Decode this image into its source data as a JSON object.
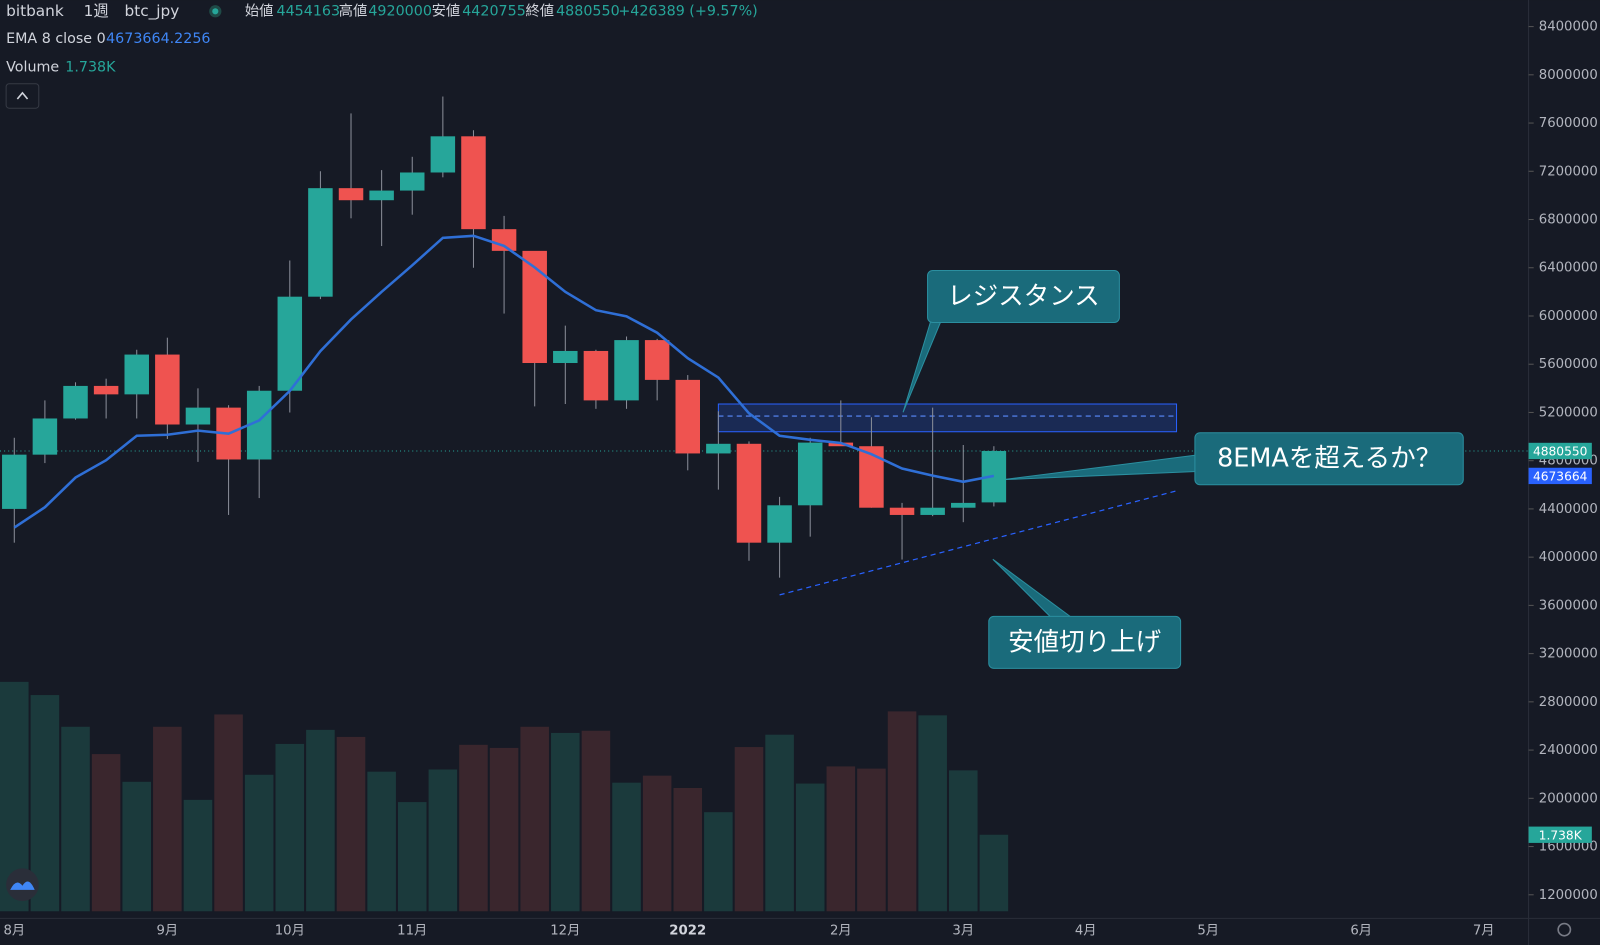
{
  "chart_data": {
    "type": "candlestick",
    "symbol": "bitbank",
    "interval": "1週",
    "pair": "btc_jpy",
    "header_labels": {
      "open": "始値",
      "high": "高値",
      "low": "安値",
      "close": "終値"
    },
    "change": "+426389 (+9.57%)",
    "candles": {
      "open": [
        4400000,
        4850000,
        5150000,
        5420000,
        5350000,
        5680000,
        5100000,
        5240000,
        4810000,
        5380000,
        6160000,
        7060000,
        6960000,
        7040000,
        7190000,
        7490000,
        6720000,
        6540000,
        5610000,
        5710000,
        5300000,
        5800000,
        5470000,
        4860000,
        4940000,
        4120000,
        4430000,
        4950000,
        4920000,
        4410000,
        4350000,
        4410000,
        4454163
      ],
      "high": [
        4990000,
        5300000,
        5450000,
        5480000,
        5720000,
        5820000,
        5400000,
        5260000,
        5420000,
        6460000,
        7200000,
        7680000,
        7210000,
        7320000,
        7820000,
        7540000,
        6830000,
        6530000,
        5920000,
        5720000,
        5830000,
        5810000,
        5510000,
        5210000,
        4960000,
        4500000,
        4990000,
        5300000,
        5160000,
        4450000,
        5240000,
        4930000,
        4920000
      ],
      "low": [
        4120000,
        4780000,
        5140000,
        5150000,
        5150000,
        4980000,
        4790000,
        4350000,
        4490000,
        5200000,
        6140000,
        6810000,
        6580000,
        6840000,
        7150000,
        6400000,
        6020000,
        5250000,
        5270000,
        5230000,
        5230000,
        5300000,
        4720000,
        4560000,
        3970000,
        3830000,
        4170000,
        4930000,
        4410000,
        3980000,
        4340000,
        4290000,
        4420755
      ],
      "close": [
        4850000,
        5150000,
        5420000,
        5350000,
        5680000,
        5100000,
        5240000,
        4810000,
        5380000,
        6160000,
        7060000,
        6960000,
        7040000,
        7190000,
        7490000,
        6720000,
        6540000,
        5610000,
        5710000,
        5300000,
        5800000,
        5470000,
        4860000,
        4940000,
        4120000,
        4430000,
        4950000,
        4920000,
        4410000,
        4350000,
        4410000,
        4450000,
        4880550
      ],
      "up_color": "#26a69a",
      "down_color": "#ef5350"
    },
    "ema": {
      "name": "EMA 8 close 0",
      "color": "#2f6fd6",
      "values": [
        4245000,
        4414000,
        4660000,
        4804000,
        5007000,
        5015000,
        5049000,
        5024000,
        5134000,
        5379000,
        5709000,
        5971000,
        6200000,
        6420000,
        6648000,
        6665000,
        6581000,
        6403000,
        6200000,
        6048000,
        5997000,
        5861000,
        5650000,
        5489000,
        5193000,
        5007000,
        4973000,
        4947000,
        4854000,
        4735000,
        4676000,
        4625000,
        4673664.2256
      ],
      "last_label": "4673664"
    },
    "volume": {
      "name": "Volume",
      "values": [
        5210,
        4910,
        4190,
        3570,
        2940,
        4190,
        2530,
        4470,
        3100,
        3800,
        4120,
        3960,
        3170,
        2480,
        3220,
        3780,
        3710,
        4190,
        4050,
        4100,
        2920,
        3080,
        2800,
        2250,
        3730,
        4010,
        2900,
        3290,
        3240,
        4540,
        4450,
        3200,
        1738
      ],
      "last_label": "1.738K"
    },
    "ylim": [
      1004000,
      8620000
    ],
    "yticks": [
      1200000,
      1600000,
      2000000,
      2400000,
      2800000,
      3200000,
      3600000,
      4000000,
      4400000,
      4800000,
      5200000,
      5600000,
      6000000,
      6400000,
      6800000,
      7200000,
      7600000,
      8000000,
      8400000
    ],
    "xticks": [
      "8月",
      "9月",
      "10月",
      "11月",
      "12月",
      "2022",
      "2月",
      "3月",
      "4月",
      "5月",
      "6月",
      "7月"
    ],
    "resistance_zone": [
      5040000,
      5270000,
      5170000
    ],
    "support_line": [
      3687000,
      4550000
    ],
    "annotations": [
      "レジスタンス",
      "8EMAを超えるか？",
      "安値切り上げ"
    ]
  }
}
